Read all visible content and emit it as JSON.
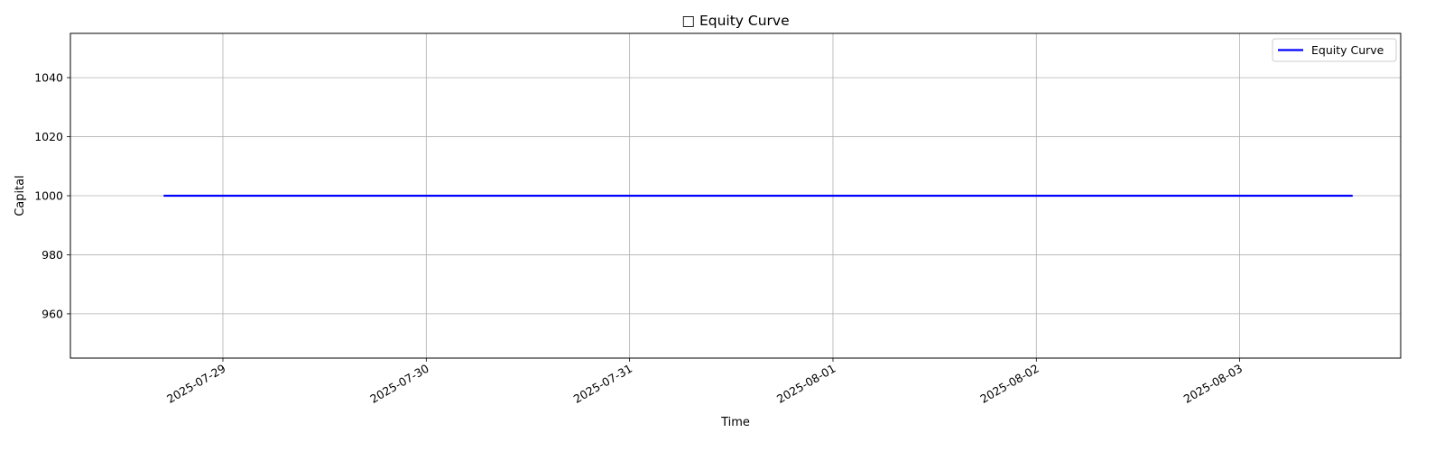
{
  "chart_data": {
    "type": "line",
    "title": "□ Equity Curve",
    "xlabel": "Time",
    "ylabel": "Capital",
    "x_ticks": [
      "2025-07-29",
      "2025-07-30",
      "2025-07-31",
      "2025-08-01",
      "2025-08-02",
      "2025-08-03"
    ],
    "y_ticks": [
      "960",
      "980",
      "1000",
      "1020",
      "1040"
    ],
    "xlim": [
      "2025-07-28T06:00",
      "2025-08-03T19:00"
    ],
    "ylim": [
      945,
      1055
    ],
    "grid": true,
    "legend_position": "top-right",
    "series": [
      {
        "name": "Equity Curve",
        "color": "#0000ff",
        "x": [
          "2025-07-28T17:00",
          "2025-08-03T13:20"
        ],
        "values": [
          1000,
          1000
        ]
      }
    ]
  },
  "colors": {
    "line": "#0000ff",
    "grid": "#b0b0b0",
    "axes": "#000000",
    "background": "#ffffff"
  }
}
